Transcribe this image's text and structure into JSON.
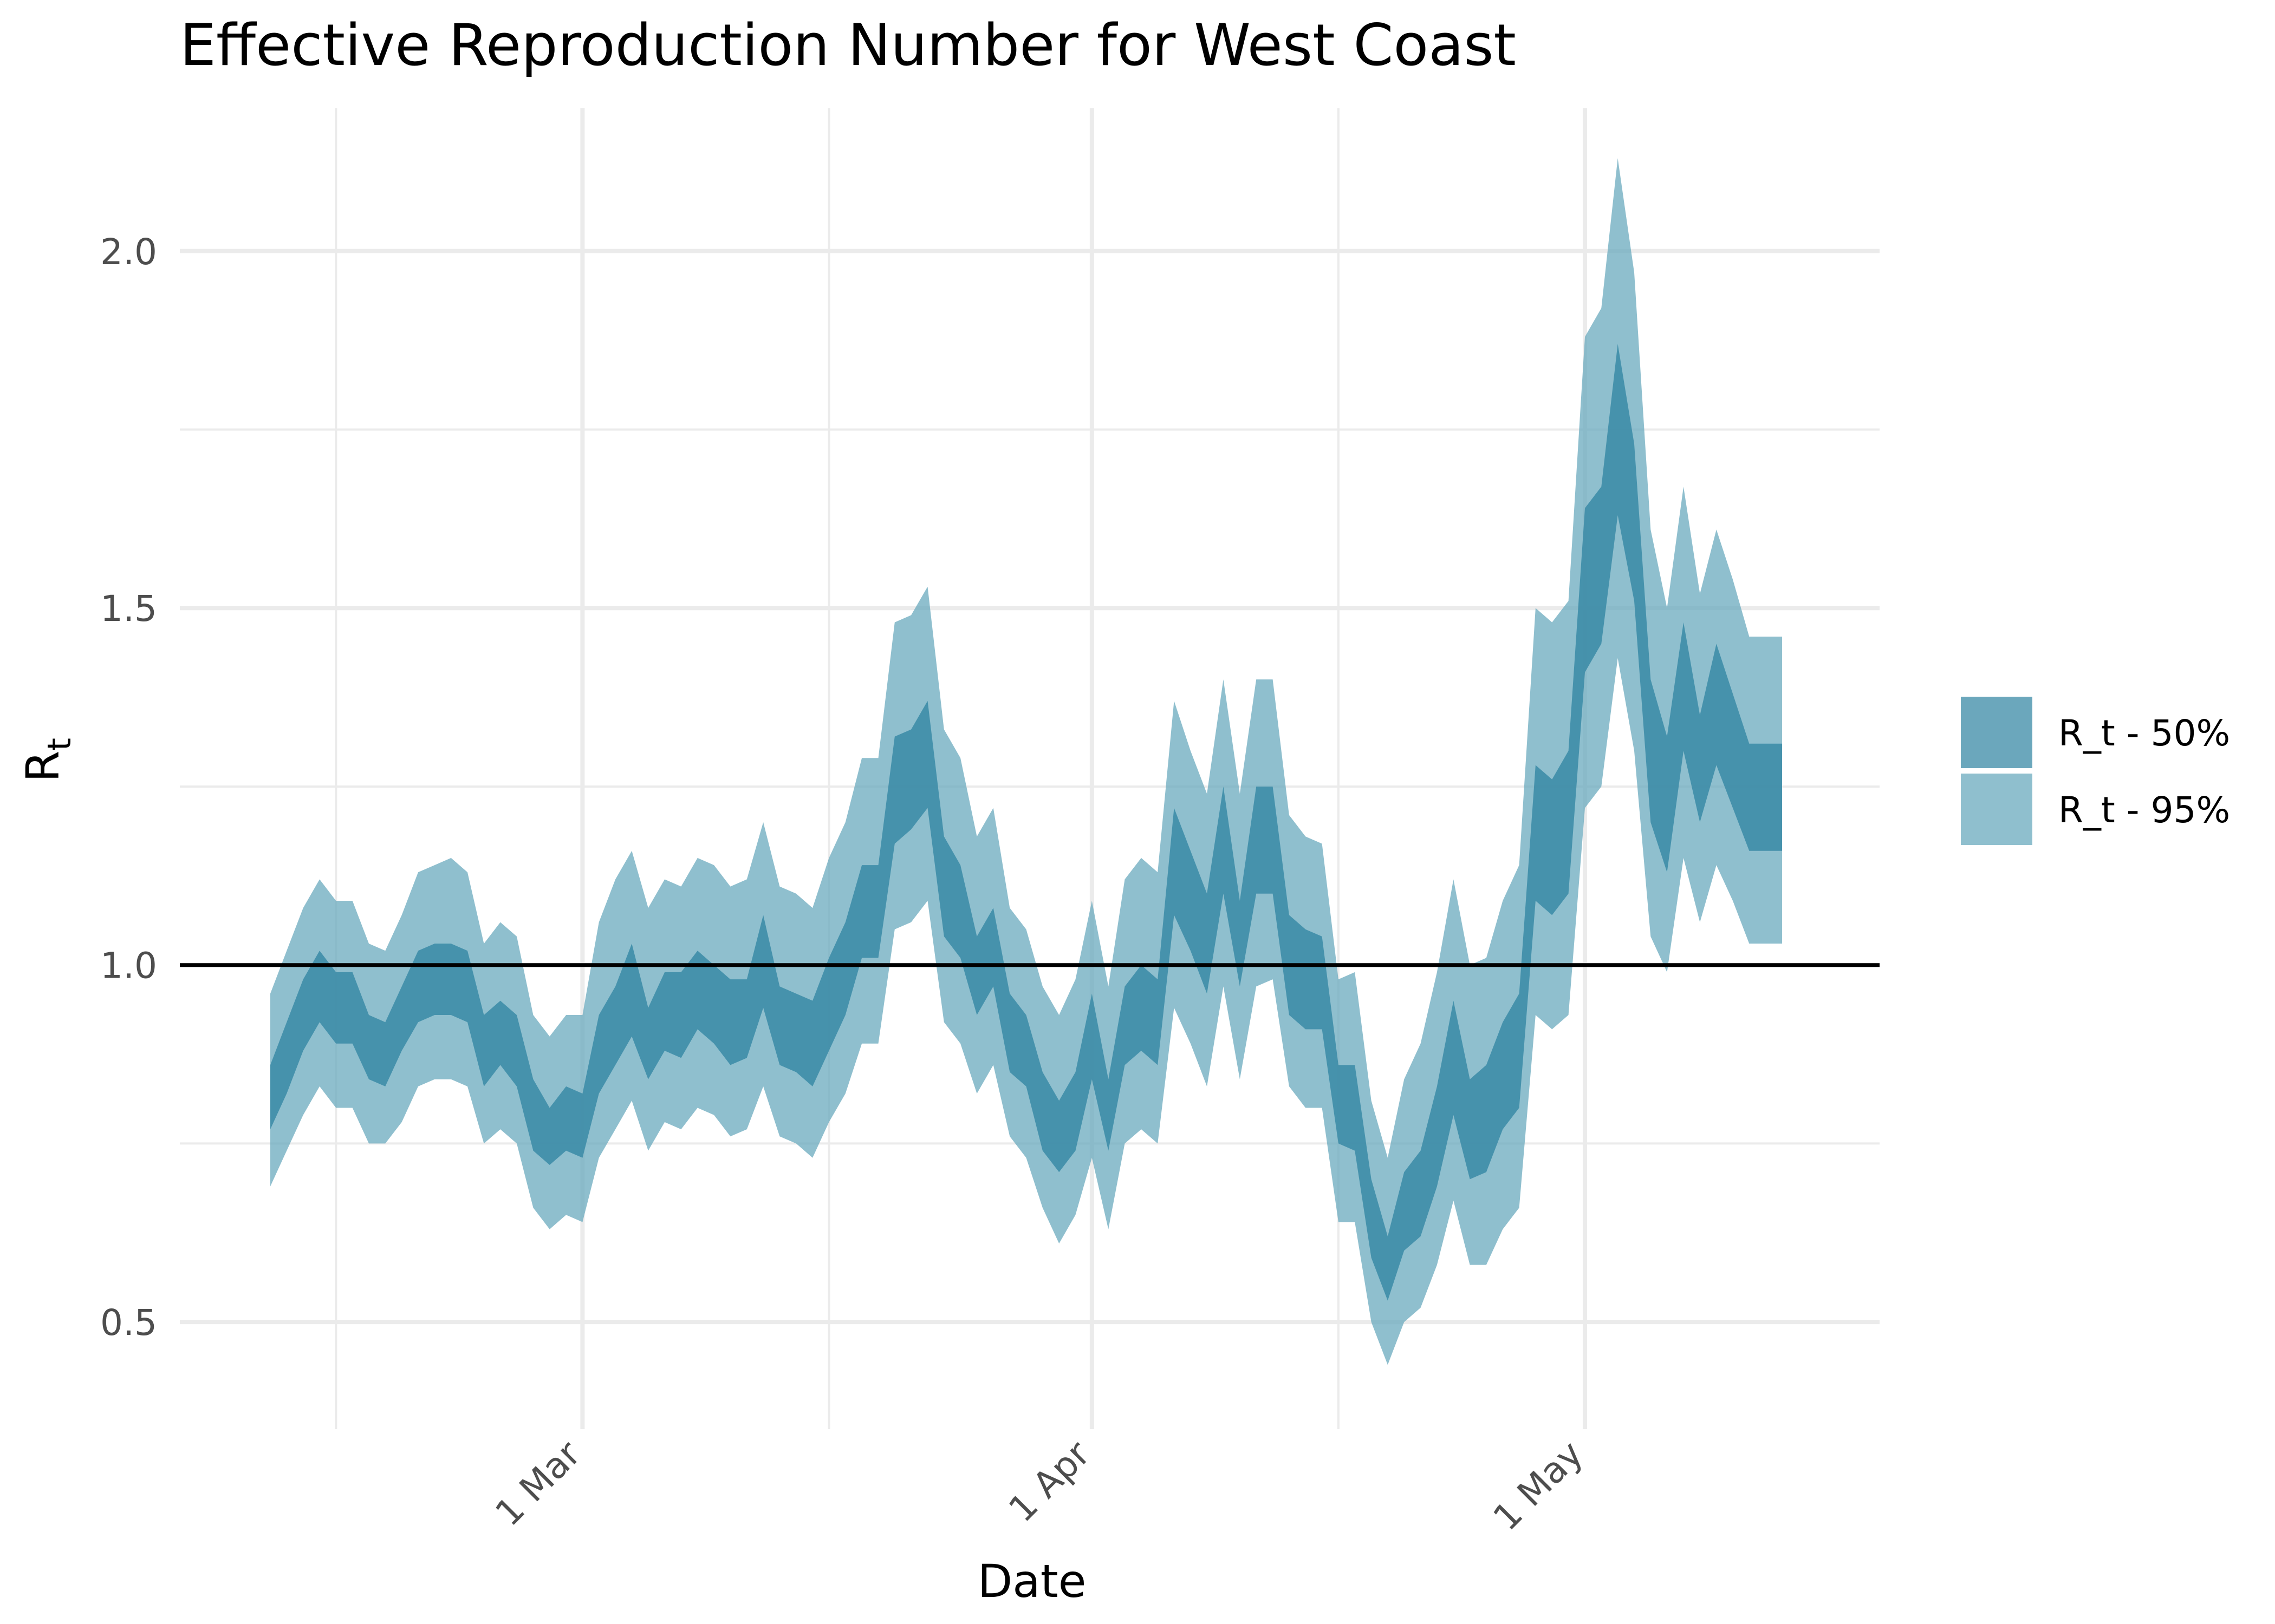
{
  "chart_data": {
    "type": "area",
    "title": "Effective Reproduction Number for West Coast",
    "xlabel": "Date",
    "ylabel": "R",
    "ylabel_subscript": "t",
    "x_range": [
      "2020-02-14",
      "2020-05-13"
    ],
    "ylim": [
      0.35,
      2.2
    ],
    "y_ticks": [
      0.5,
      1.0,
      1.5,
      2.0
    ],
    "y_tick_labels": [
      "0.5",
      "1.0",
      "1.5",
      "2.0"
    ],
    "x_ticks": [
      "2020-03-01",
      "2020-04-01",
      "2020-05-01"
    ],
    "x_tick_labels": [
      "1 Mar",
      "1 Apr",
      "1 May"
    ],
    "minor_x_gridlines": [
      "2020-02-15",
      "2020-03-16",
      "2020-04-16"
    ],
    "minor_y_gridlines": [
      0.75,
      1.25,
      1.75
    ],
    "grid": true,
    "reference_line": 1.0,
    "legend_position": "right",
    "series": [
      {
        "name": "R_t - 50%",
        "color": "#3a8aa6",
        "x": [
          "2020-02-11",
          "2020-02-12",
          "2020-02-13",
          "2020-02-14",
          "2020-02-15",
          "2020-02-16",
          "2020-02-17",
          "2020-02-18",
          "2020-02-19",
          "2020-02-20",
          "2020-02-21",
          "2020-02-22",
          "2020-02-23",
          "2020-02-24",
          "2020-02-25",
          "2020-02-26",
          "2020-02-27",
          "2020-02-28",
          "2020-02-29",
          "2020-03-01",
          "2020-03-02",
          "2020-03-03",
          "2020-03-04",
          "2020-03-05",
          "2020-03-06",
          "2020-03-07",
          "2020-03-08",
          "2020-03-09",
          "2020-03-10",
          "2020-03-11",
          "2020-03-12",
          "2020-03-13",
          "2020-03-14",
          "2020-03-15",
          "2020-03-16",
          "2020-03-17",
          "2020-03-18",
          "2020-03-19",
          "2020-03-20",
          "2020-03-21",
          "2020-03-22",
          "2020-03-23",
          "2020-03-24",
          "2020-03-25",
          "2020-03-26",
          "2020-03-27",
          "2020-03-28",
          "2020-03-29",
          "2020-03-30",
          "2020-03-31",
          "2020-04-01",
          "2020-04-02",
          "2020-04-03",
          "2020-04-04",
          "2020-04-05",
          "2020-04-06",
          "2020-04-07",
          "2020-04-08",
          "2020-04-09",
          "2020-04-10",
          "2020-04-11",
          "2020-04-12",
          "2020-04-13",
          "2020-04-14",
          "2020-04-15",
          "2020-04-16",
          "2020-04-17",
          "2020-04-18",
          "2020-04-19",
          "2020-04-20",
          "2020-04-21",
          "2020-04-22",
          "2020-04-23",
          "2020-04-24",
          "2020-04-25",
          "2020-04-26",
          "2020-04-27",
          "2020-04-28",
          "2020-04-29",
          "2020-04-30",
          "2020-05-01",
          "2020-05-02",
          "2020-05-03",
          "2020-05-04",
          "2020-05-05",
          "2020-05-06",
          "2020-05-07",
          "2020-05-08",
          "2020-05-09",
          "2020-05-10",
          "2020-05-11",
          "2020-05-12",
          "2020-05-13"
        ],
        "lower": [
          0.77,
          0.82,
          0.88,
          0.92,
          0.89,
          0.89,
          0.84,
          0.83,
          0.88,
          0.92,
          0.93,
          0.93,
          0.92,
          0.83,
          0.86,
          0.83,
          0.74,
          0.72,
          0.74,
          0.73,
          0.82,
          0.86,
          0.9,
          0.84,
          0.88,
          0.87,
          0.91,
          0.89,
          0.86,
          0.87,
          0.94,
          0.86,
          0.85,
          0.83,
          0.88,
          0.93,
          1.01,
          1.01,
          1.17,
          1.19,
          1.22,
          1.04,
          1.01,
          0.93,
          0.97,
          0.85,
          0.83,
          0.74,
          0.71,
          0.74,
          0.84,
          0.74,
          0.86,
          0.88,
          0.86,
          1.07,
          1.02,
          0.96,
          1.1,
          0.97,
          1.1,
          1.1,
          0.93,
          0.91,
          0.91,
          0.75,
          0.74,
          0.59,
          0.53,
          0.6,
          0.62,
          0.69,
          0.79,
          0.7,
          0.71,
          0.77,
          0.8,
          1.09,
          1.07,
          1.1,
          1.41,
          1.45,
          1.63,
          1.51,
          1.2,
          1.13,
          1.3,
          1.2,
          1.28,
          1.22,
          1.16,
          1.16,
          1.16
        ],
        "upper": [
          0.86,
          0.92,
          0.98,
          1.02,
          0.99,
          0.99,
          0.93,
          0.92,
          0.97,
          1.02,
          1.03,
          1.03,
          1.02,
          0.93,
          0.95,
          0.93,
          0.84,
          0.8,
          0.83,
          0.82,
          0.93,
          0.97,
          1.03,
          0.94,
          0.99,
          0.99,
          1.02,
          1.0,
          0.98,
          0.98,
          1.07,
          0.97,
          0.96,
          0.95,
          1.01,
          1.06,
          1.14,
          1.14,
          1.32,
          1.33,
          1.37,
          1.18,
          1.14,
          1.04,
          1.08,
          0.96,
          0.93,
          0.85,
          0.81,
          0.85,
          0.96,
          0.84,
          0.97,
          1.0,
          0.98,
          1.22,
          1.16,
          1.1,
          1.25,
          1.09,
          1.25,
          1.25,
          1.07,
          1.05,
          1.04,
          0.86,
          0.86,
          0.7,
          0.62,
          0.71,
          0.74,
          0.83,
          0.95,
          0.84,
          0.86,
          0.92,
          0.96,
          1.28,
          1.26,
          1.3,
          1.64,
          1.67,
          1.87,
          1.73,
          1.4,
          1.32,
          1.48,
          1.35,
          1.45,
          1.38,
          1.31,
          1.31,
          1.31
        ]
      },
      {
        "name": "R_t - 95%",
        "color": "#6aa9bd",
        "x": [
          "2020-02-11",
          "2020-02-12",
          "2020-02-13",
          "2020-02-14",
          "2020-02-15",
          "2020-02-16",
          "2020-02-17",
          "2020-02-18",
          "2020-02-19",
          "2020-02-20",
          "2020-02-21",
          "2020-02-22",
          "2020-02-23",
          "2020-02-24",
          "2020-02-25",
          "2020-02-26",
          "2020-02-27",
          "2020-02-28",
          "2020-02-29",
          "2020-03-01",
          "2020-03-02",
          "2020-03-03",
          "2020-03-04",
          "2020-03-05",
          "2020-03-06",
          "2020-03-07",
          "2020-03-08",
          "2020-03-09",
          "2020-03-10",
          "2020-03-11",
          "2020-03-12",
          "2020-03-13",
          "2020-03-14",
          "2020-03-15",
          "2020-03-16",
          "2020-03-17",
          "2020-03-18",
          "2020-03-19",
          "2020-03-20",
          "2020-03-21",
          "2020-03-22",
          "2020-03-23",
          "2020-03-24",
          "2020-03-25",
          "2020-03-26",
          "2020-03-27",
          "2020-03-28",
          "2020-03-29",
          "2020-03-30",
          "2020-03-31",
          "2020-04-01",
          "2020-04-02",
          "2020-04-03",
          "2020-04-04",
          "2020-04-05",
          "2020-04-06",
          "2020-04-07",
          "2020-04-08",
          "2020-04-09",
          "2020-04-10",
          "2020-04-11",
          "2020-04-12",
          "2020-04-13",
          "2020-04-14",
          "2020-04-15",
          "2020-04-16",
          "2020-04-17",
          "2020-04-18",
          "2020-04-19",
          "2020-04-20",
          "2020-04-21",
          "2020-04-22",
          "2020-04-23",
          "2020-04-24",
          "2020-04-25",
          "2020-04-26",
          "2020-04-27",
          "2020-04-28",
          "2020-04-29",
          "2020-04-30",
          "2020-05-01",
          "2020-05-02",
          "2020-05-03",
          "2020-05-04",
          "2020-05-05",
          "2020-05-06",
          "2020-05-07",
          "2020-05-08",
          "2020-05-09",
          "2020-05-10",
          "2020-05-11",
          "2020-05-12",
          "2020-05-13"
        ],
        "lower": [
          0.69,
          0.74,
          0.79,
          0.83,
          0.8,
          0.8,
          0.75,
          0.75,
          0.78,
          0.83,
          0.84,
          0.84,
          0.83,
          0.75,
          0.77,
          0.75,
          0.66,
          0.63,
          0.65,
          0.64,
          0.73,
          0.77,
          0.81,
          0.74,
          0.78,
          0.77,
          0.8,
          0.79,
          0.76,
          0.77,
          0.83,
          0.76,
          0.75,
          0.73,
          0.78,
          0.82,
          0.89,
          0.89,
          1.05,
          1.06,
          1.09,
          0.92,
          0.89,
          0.82,
          0.86,
          0.76,
          0.73,
          0.66,
          0.61,
          0.65,
          0.73,
          0.63,
          0.75,
          0.77,
          0.75,
          0.94,
          0.89,
          0.83,
          0.97,
          0.84,
          0.97,
          0.98,
          0.83,
          0.8,
          0.8,
          0.64,
          0.64,
          0.5,
          0.44,
          0.5,
          0.52,
          0.58,
          0.67,
          0.58,
          0.58,
          0.63,
          0.66,
          0.93,
          0.91,
          0.93,
          1.22,
          1.25,
          1.43,
          1.3,
          1.04,
          0.99,
          1.15,
          1.06,
          1.14,
          1.09,
          1.03,
          1.03,
          1.03
        ],
        "upper": [
          0.96,
          1.02,
          1.08,
          1.12,
          1.09,
          1.09,
          1.03,
          1.02,
          1.07,
          1.13,
          1.14,
          1.15,
          1.13,
          1.03,
          1.06,
          1.04,
          0.93,
          0.9,
          0.93,
          0.93,
          1.06,
          1.12,
          1.16,
          1.08,
          1.12,
          1.11,
          1.15,
          1.14,
          1.11,
          1.12,
          1.2,
          1.11,
          1.1,
          1.08,
          1.15,
          1.2,
          1.29,
          1.29,
          1.48,
          1.49,
          1.53,
          1.33,
          1.29,
          1.18,
          1.22,
          1.08,
          1.05,
          0.97,
          0.93,
          0.98,
          1.09,
          0.97,
          1.12,
          1.15,
          1.13,
          1.37,
          1.3,
          1.24,
          1.4,
          1.24,
          1.4,
          1.4,
          1.21,
          1.18,
          1.17,
          0.98,
          0.99,
          0.81,
          0.73,
          0.84,
          0.89,
          0.99,
          1.12,
          1.0,
          1.01,
          1.09,
          1.14,
          1.5,
          1.48,
          1.51,
          1.88,
          1.92,
          2.13,
          1.97,
          1.61,
          1.5,
          1.67,
          1.52,
          1.61,
          1.54,
          1.46,
          1.46,
          1.46
        ]
      }
    ]
  },
  "colors": {
    "band_50": "#3a8aa6",
    "band_95": "#6aa9bd",
    "reference_line": "#000000",
    "grid": "#ebebeb",
    "tick_text": "#4d4d4d"
  }
}
